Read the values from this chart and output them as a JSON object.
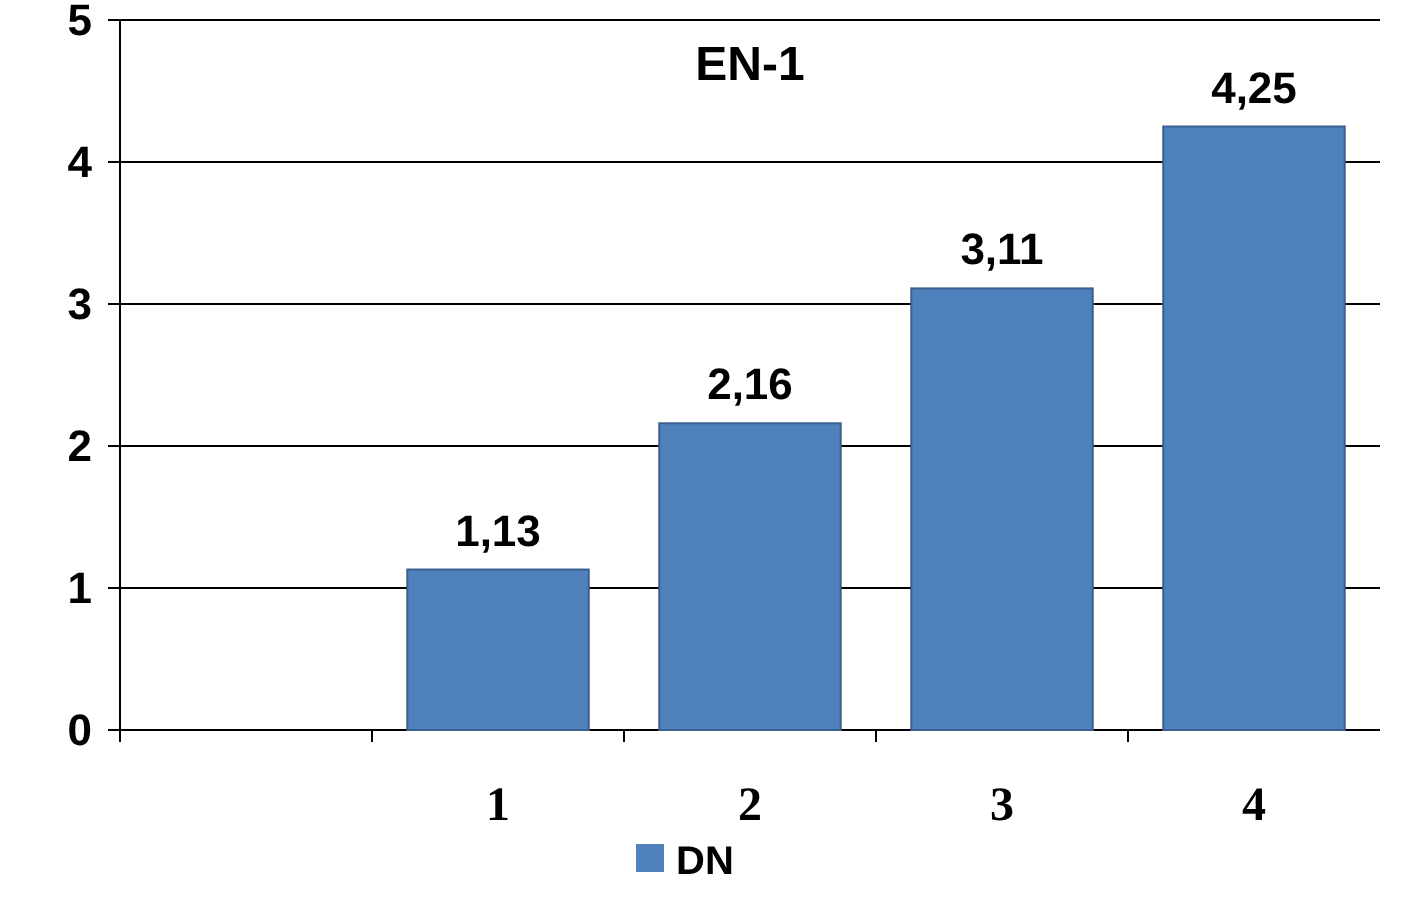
{
  "chart_data": {
    "type": "bar",
    "title": "EN-1",
    "categories": [
      null,
      "1",
      "2",
      "3",
      "4"
    ],
    "series": [
      {
        "name": "DN",
        "color": "#4f81bd",
        "values": [
          null,
          1.13,
          2.16,
          3.11,
          4.25
        ],
        "value_labels": [
          null,
          "1,13",
          "2,16",
          "3,11",
          "4,25"
        ]
      }
    ],
    "ylim": [
      0,
      5
    ],
    "yticks": [
      0,
      1,
      2,
      3,
      4,
      5
    ],
    "grid": "y",
    "legend": "bottom"
  }
}
